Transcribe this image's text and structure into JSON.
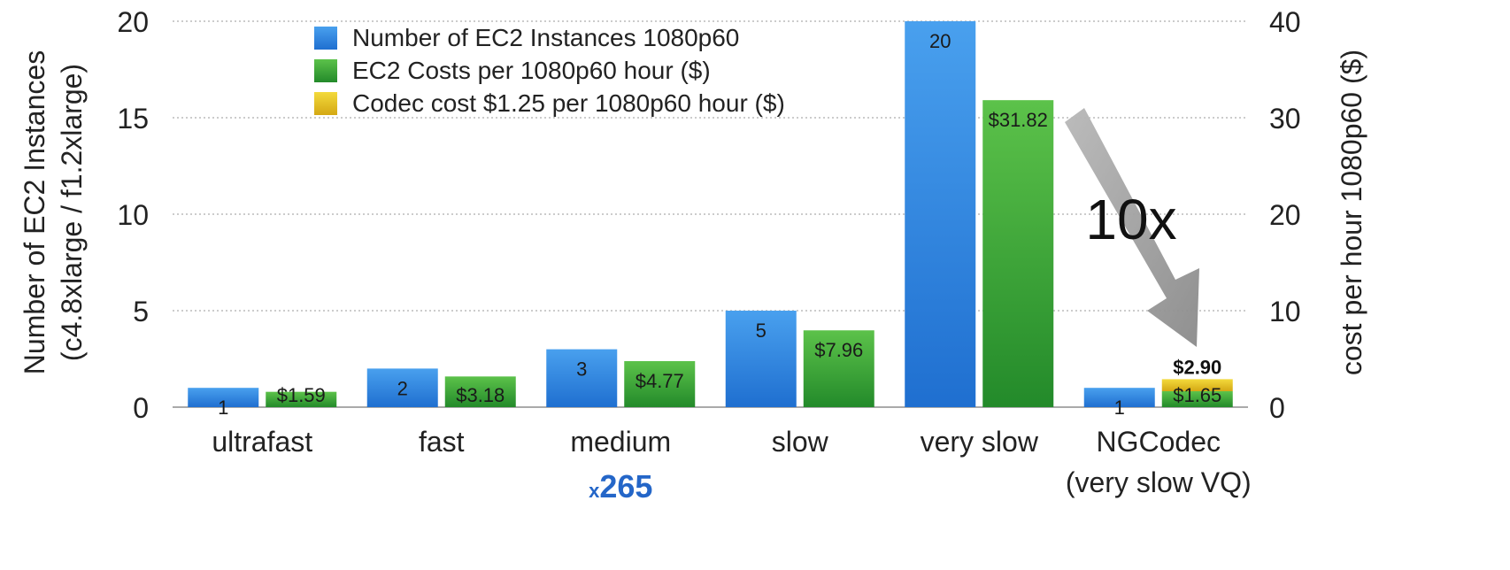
{
  "chart_data": {
    "type": "bar",
    "categories": [
      {
        "name": "ultrafast",
        "sub": ""
      },
      {
        "name": "fast",
        "sub": ""
      },
      {
        "name": "medium",
        "sub": ""
      },
      {
        "name": "slow",
        "sub": ""
      },
      {
        "name": "very slow",
        "sub": ""
      },
      {
        "name": "NGCodec",
        "sub": "(very slow VQ)"
      }
    ],
    "series": [
      {
        "name": "Number of EC2 Instances 1080p60",
        "axis": "left",
        "values": [
          1,
          2,
          3,
          5,
          20,
          1
        ],
        "labels": [
          "1",
          "2",
          "3",
          "5",
          "20",
          "1"
        ]
      },
      {
        "name": "EC2 Costs per 1080p60 hour ($)",
        "axis": "right",
        "values": [
          1.59,
          3.18,
          4.77,
          7.96,
          31.82,
          1.65
        ],
        "labels": [
          "$1.59",
          "$3.18",
          "$4.77",
          "$7.96",
          "$31.82",
          "$1.65"
        ]
      },
      {
        "name": "Codec cost $1.25 per 1080p60 hour ($)",
        "axis": "right",
        "stacked_on": "EC2 Costs per 1080p60 hour ($)",
        "values": [
          0,
          0,
          0,
          0,
          0,
          1.25
        ],
        "total_labels": [
          "",
          "",
          "",
          "",
          "",
          "$2.90"
        ]
      }
    ],
    "ylabel_left": [
      "Number of EC2 Instances",
      "(c4.8xlarge / f1.2xlarge)"
    ],
    "ylabel_right": "cost per hour 1080p60 ($)",
    "ylim_left": [
      0,
      20
    ],
    "ylim_right": [
      0,
      40
    ],
    "yticks_left": [
      0,
      5,
      10,
      15,
      20
    ],
    "yticks_right": [
      0,
      10,
      20,
      30,
      40
    ],
    "grid": true,
    "legend_position": "top-left",
    "annotation": "10x",
    "group_label": "x265",
    "colors": {
      "instances": "#2f86e0",
      "ec2_cost": "#3aa63a",
      "codec_cost": "#e8c21a",
      "arrow": "#9a9a9a"
    }
  }
}
